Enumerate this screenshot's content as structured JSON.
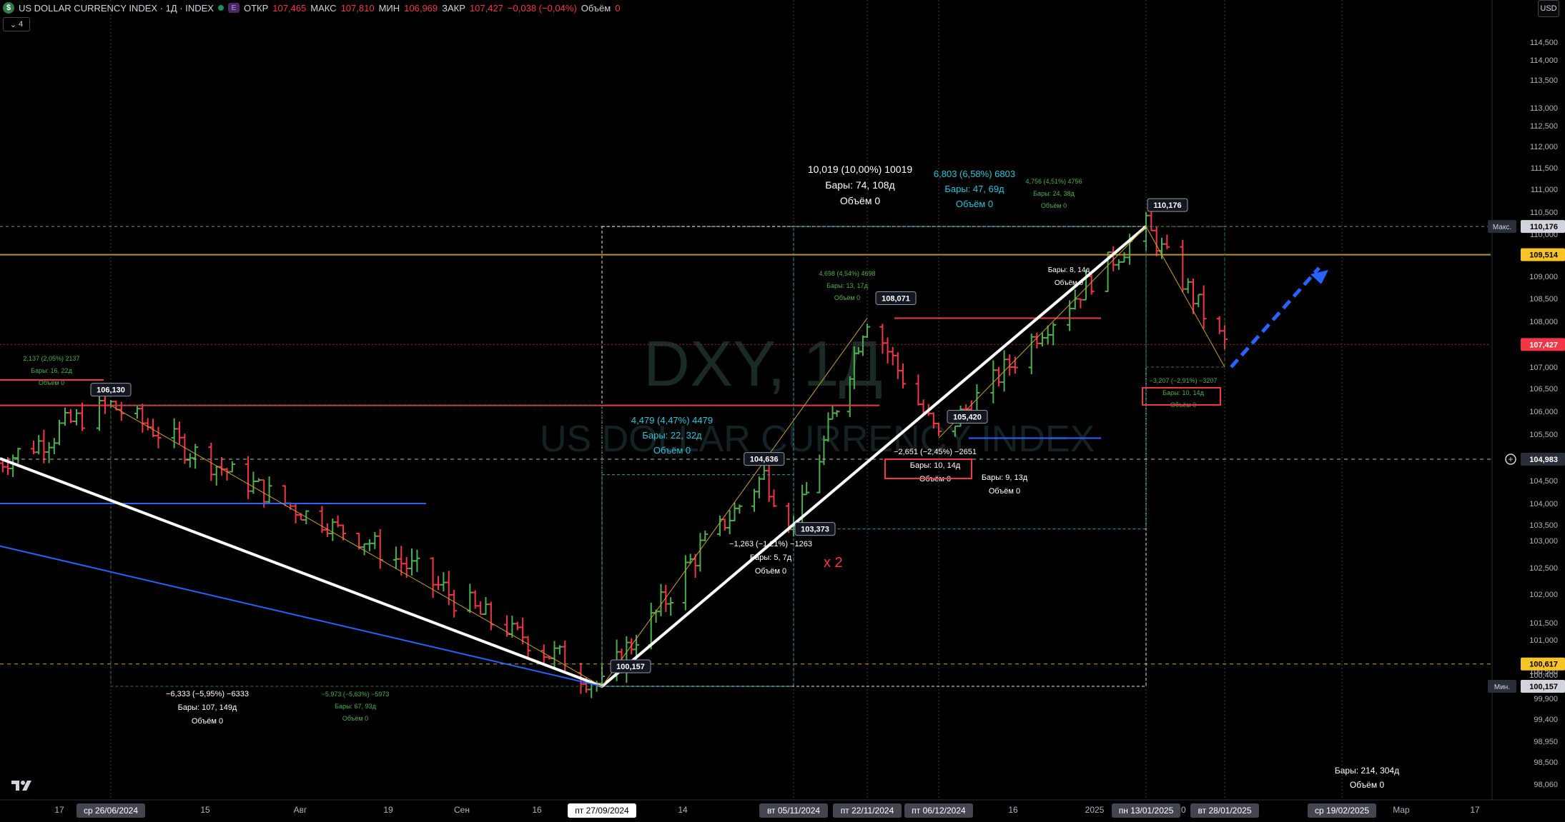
{
  "header": {
    "symbol_badge": "$",
    "title": "US DOLLAR CURRENCY INDEX · 1Д · INDEX",
    "badge_e": "E",
    "open_label": "ОТКР",
    "open": "107,465",
    "high_label": "МАКС",
    "high": "107,810",
    "low_label": "МИН",
    "low": "106,969",
    "close_label": "ЗАКР",
    "close": "107,427",
    "change": "−0,038 (−0,04%)",
    "volume_label": "Объём",
    "volume": "0",
    "indicator_count": "4",
    "currency": "USD"
  },
  "watermark": {
    "line1": "DXY, 1Д",
    "line2": "US DOLLAR CURRENCY INDEX"
  },
  "colors": {
    "up": "#4caf50",
    "down": "#f23645",
    "bg": "#000000",
    "accent_blue": "#2962ff"
  },
  "chart_data": {
    "type": "candlestick",
    "title": "US DOLLAR CURRENCY INDEX · 1Д · INDEX",
    "y_axis": {
      "side": "right",
      "ticks": [
        "114,500",
        "114,000",
        "113,500",
        "113,000",
        "112,500",
        "112,000",
        "111,500",
        "111,000",
        "110,500",
        "110,000",
        "109,000",
        "108,500",
        "108,000",
        "107,500",
        "107,000",
        "106,500",
        "106,000",
        "105,500",
        "105,000",
        "104,500",
        "104,000",
        "103,500",
        "103,000",
        "102,500",
        "102,000",
        "101,500",
        "101,000",
        "100,500",
        "100,400",
        "99,900",
        "99,400",
        "98,950",
        "98,500",
        "98,060"
      ],
      "markers": [
        {
          "label": "Макс.",
          "value": "110,176",
          "style": "max"
        },
        {
          "label": "",
          "value": "109,514",
          "style": "yellow"
        },
        {
          "label": "",
          "value": "107,427",
          "style": "red"
        },
        {
          "label": "",
          "value": "104,983",
          "style": "cross"
        },
        {
          "label": "",
          "value": "100,617",
          "style": "yellow"
        },
        {
          "label": "Мин.",
          "value": "100,157",
          "style": "min"
        }
      ]
    },
    "x_axis": {
      "ticks": [
        "17",
        "15",
        "Авг",
        "19",
        "Сен",
        "16",
        "14",
        "16",
        "2025",
        "20",
        "Мар",
        "17"
      ],
      "highlight_ticks": [
        "ср 26/06/2024",
        "пт 27/09/2024",
        "вт 05/11/2024",
        "пт 22/11/2024",
        "пт 06/12/2024",
        "пн 13/01/2025",
        "вт 28/01/2025",
        "ср 19/02/2025"
      ]
    },
    "price_callouts": [
      "106,130",
      "104,636",
      "103,373",
      "100,157",
      "108,071",
      "105,420",
      "110,176"
    ],
    "measurements": [
      {
        "lines": [
          "2,137 (2,05%) 2137",
          "Бары: 16, 22д",
          "Объём 0"
        ],
        "color": "green"
      },
      {
        "lines": [
          "−6,333 (−5,95%) −6333",
          "Бары: 107, 149д",
          "Объём 0"
        ],
        "color": "white"
      },
      {
        "lines": [
          "−5,973 (−5,63%) −5973",
          "Бары: 67, 93д",
          "Объём 0"
        ],
        "color": "green"
      },
      {
        "lines": [
          "4,479 (4,47%) 4479",
          "Бары: 22, 32д",
          "Объём 0"
        ],
        "color": "cyan"
      },
      {
        "lines": [
          "−1,263 (−1,21%) −1263",
          "Бары: 5, 7д",
          "Объём 0"
        ],
        "color": "white"
      },
      {
        "lines": [
          "10,019 (10,00%) 10019",
          "Бары: 74, 108д",
          "Объём 0"
        ],
        "color": "white"
      },
      {
        "lines": [
          "6,803 (6,58%) 6803",
          "Бары: 47, 69д",
          "Объём 0"
        ],
        "color": "cyan"
      },
      {
        "lines": [
          "4,698 (4,54%) 4698",
          "Бары: 13, 17д",
          "Объём 0"
        ],
        "color": "green"
      },
      {
        "lines": [
          "4,756 (4,51%) 4756",
          "Бары: 24, 38д",
          "Объём 0"
        ],
        "color": "green"
      },
      {
        "lines": [
          "−2,651 (−2,45%) −2651",
          "Бары: 10, 14д",
          "Объём 0"
        ],
        "color": "white"
      },
      {
        "lines": [
          "Бары: 9, 13д",
          "Объём 0"
        ],
        "color": "white"
      },
      {
        "lines": [
          "Бары: 8, 14д",
          "Объём 0"
        ],
        "color": "white"
      },
      {
        "lines": [
          "−3,207 (−2,91%) −3207",
          "Бары: 10, 14д",
          "Объём 0"
        ],
        "color": "green"
      },
      {
        "lines": [
          "Бары: 214, 304д",
          "Объём 0"
        ],
        "color": "white"
      }
    ],
    "annotations": [
      "x 2"
    ],
    "ylim": [
      97.8,
      115.2
    ],
    "swing_points": [
      {
        "date": "2024-06-26",
        "price": 106.13
      },
      {
        "date": "2024-09-27",
        "price": 100.157
      },
      {
        "date": "2024-10-30",
        "price": 104.636
      },
      {
        "date": "2024-11-05",
        "price": 103.373
      },
      {
        "date": "2024-11-22",
        "price": 108.071
      },
      {
        "date": "2024-12-06",
        "price": 105.42
      },
      {
        "date": "2025-01-13",
        "price": 110.176
      },
      {
        "date": "2025-01-28",
        "price": 107.427
      }
    ]
  }
}
